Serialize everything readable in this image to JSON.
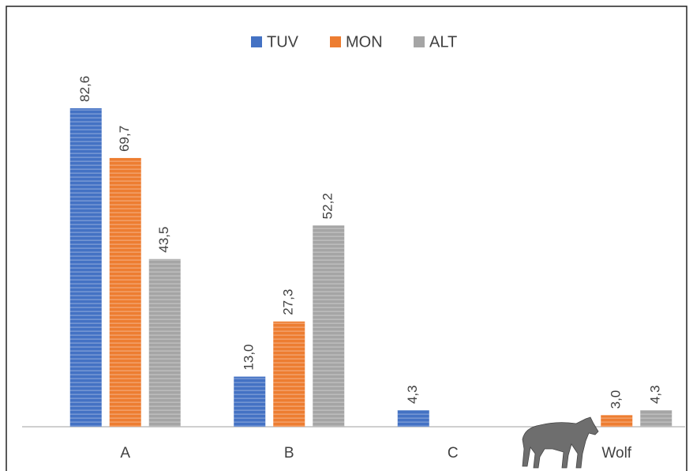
{
  "chart_data": {
    "type": "bar",
    "categories": [
      "A",
      "B",
      "C",
      "Wolf"
    ],
    "series": [
      {
        "name": "TUV",
        "color": "#4472c4",
        "values": [
          82.6,
          13.0,
          4.3,
          null
        ],
        "value_labels": [
          "82,6",
          "13,0",
          "4,3",
          null
        ]
      },
      {
        "name": "MON",
        "color": "#ed7d31",
        "values": [
          69.7,
          27.3,
          null,
          3.0
        ],
        "value_labels": [
          "69,7",
          "27,3",
          null,
          "3,0"
        ]
      },
      {
        "name": "ALT",
        "color": "#a5a5a5",
        "values": [
          43.5,
          52.2,
          null,
          4.3
        ],
        "value_labels": [
          "43,5",
          "52,2",
          null,
          "4,3"
        ]
      }
    ],
    "legend": "top"
  }
}
